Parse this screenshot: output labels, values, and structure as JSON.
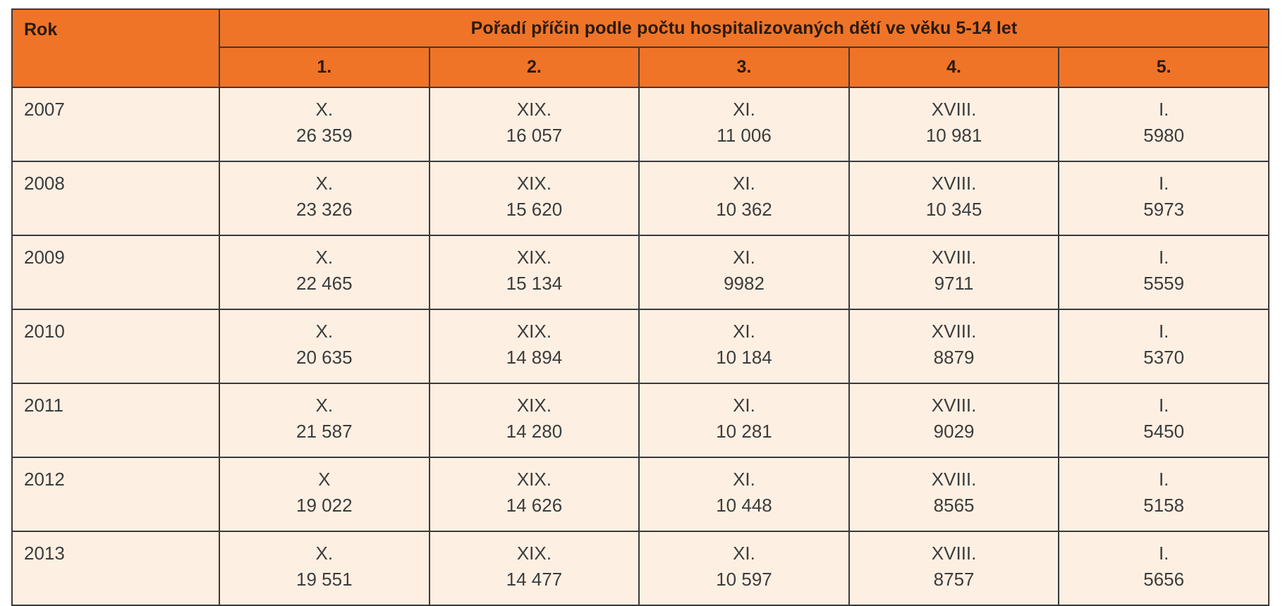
{
  "table": {
    "year_header": "Rok",
    "group_header": "Pořadí příčin podle počtu hospitalizovaných dětí ve věku 5-14 let",
    "rank_headers": [
      "1.",
      "2.",
      "3.",
      "4.",
      "5."
    ],
    "rows": [
      {
        "year": "2007",
        "cells": [
          {
            "cause": "X.",
            "count": "26 359"
          },
          {
            "cause": "XIX.",
            "count": "16 057"
          },
          {
            "cause": "XI.",
            "count": "11 006"
          },
          {
            "cause": "XVIII.",
            "count": "10 981"
          },
          {
            "cause": "I.",
            "count": "5980"
          }
        ]
      },
      {
        "year": "2008",
        "cells": [
          {
            "cause": "X.",
            "count": "23 326"
          },
          {
            "cause": "XIX.",
            "count": "15 620"
          },
          {
            "cause": "XI.",
            "count": "10 362"
          },
          {
            "cause": "XVIII.",
            "count": "10 345"
          },
          {
            "cause": "I.",
            "count": "5973"
          }
        ]
      },
      {
        "year": "2009",
        "cells": [
          {
            "cause": "X.",
            "count": "22 465"
          },
          {
            "cause": "XIX.",
            "count": "15 134"
          },
          {
            "cause": "XI.",
            "count": "9982"
          },
          {
            "cause": "XVIII.",
            "count": "9711"
          },
          {
            "cause": "I.",
            "count": "5559"
          }
        ]
      },
      {
        "year": "2010",
        "cells": [
          {
            "cause": "X.",
            "count": "20 635"
          },
          {
            "cause": "XIX.",
            "count": "14 894"
          },
          {
            "cause": "XI.",
            "count": "10 184"
          },
          {
            "cause": "XVIII.",
            "count": "8879"
          },
          {
            "cause": "I.",
            "count": "5370"
          }
        ]
      },
      {
        "year": "2011",
        "cells": [
          {
            "cause": "X.",
            "count": "21 587"
          },
          {
            "cause": "XIX.",
            "count": "14 280"
          },
          {
            "cause": "XI.",
            "count": "10 281"
          },
          {
            "cause": "XVIII.",
            "count": "9029"
          },
          {
            "cause": "I.",
            "count": "5450"
          }
        ]
      },
      {
        "year": "2012",
        "cells": [
          {
            "cause": "X",
            "count": "19 022"
          },
          {
            "cause": "XIX.",
            "count": "14 626"
          },
          {
            "cause": "XI.",
            "count": "10 448"
          },
          {
            "cause": "XVIII.",
            "count": "8565"
          },
          {
            "cause": "I.",
            "count": "5158"
          }
        ]
      },
      {
        "year": "2013",
        "cells": [
          {
            "cause": "X.",
            "count": "19 551"
          },
          {
            "cause": "XIX.",
            "count": "14 477"
          },
          {
            "cause": "XI.",
            "count": "10 597"
          },
          {
            "cause": "XVIII.",
            "count": "8757"
          },
          {
            "cause": "I.",
            "count": "5656"
          }
        ]
      }
    ]
  },
  "colors": {
    "header_bg": "#ef7427",
    "body_bg": "#fdf0e3",
    "border": "#3a3a3a"
  }
}
